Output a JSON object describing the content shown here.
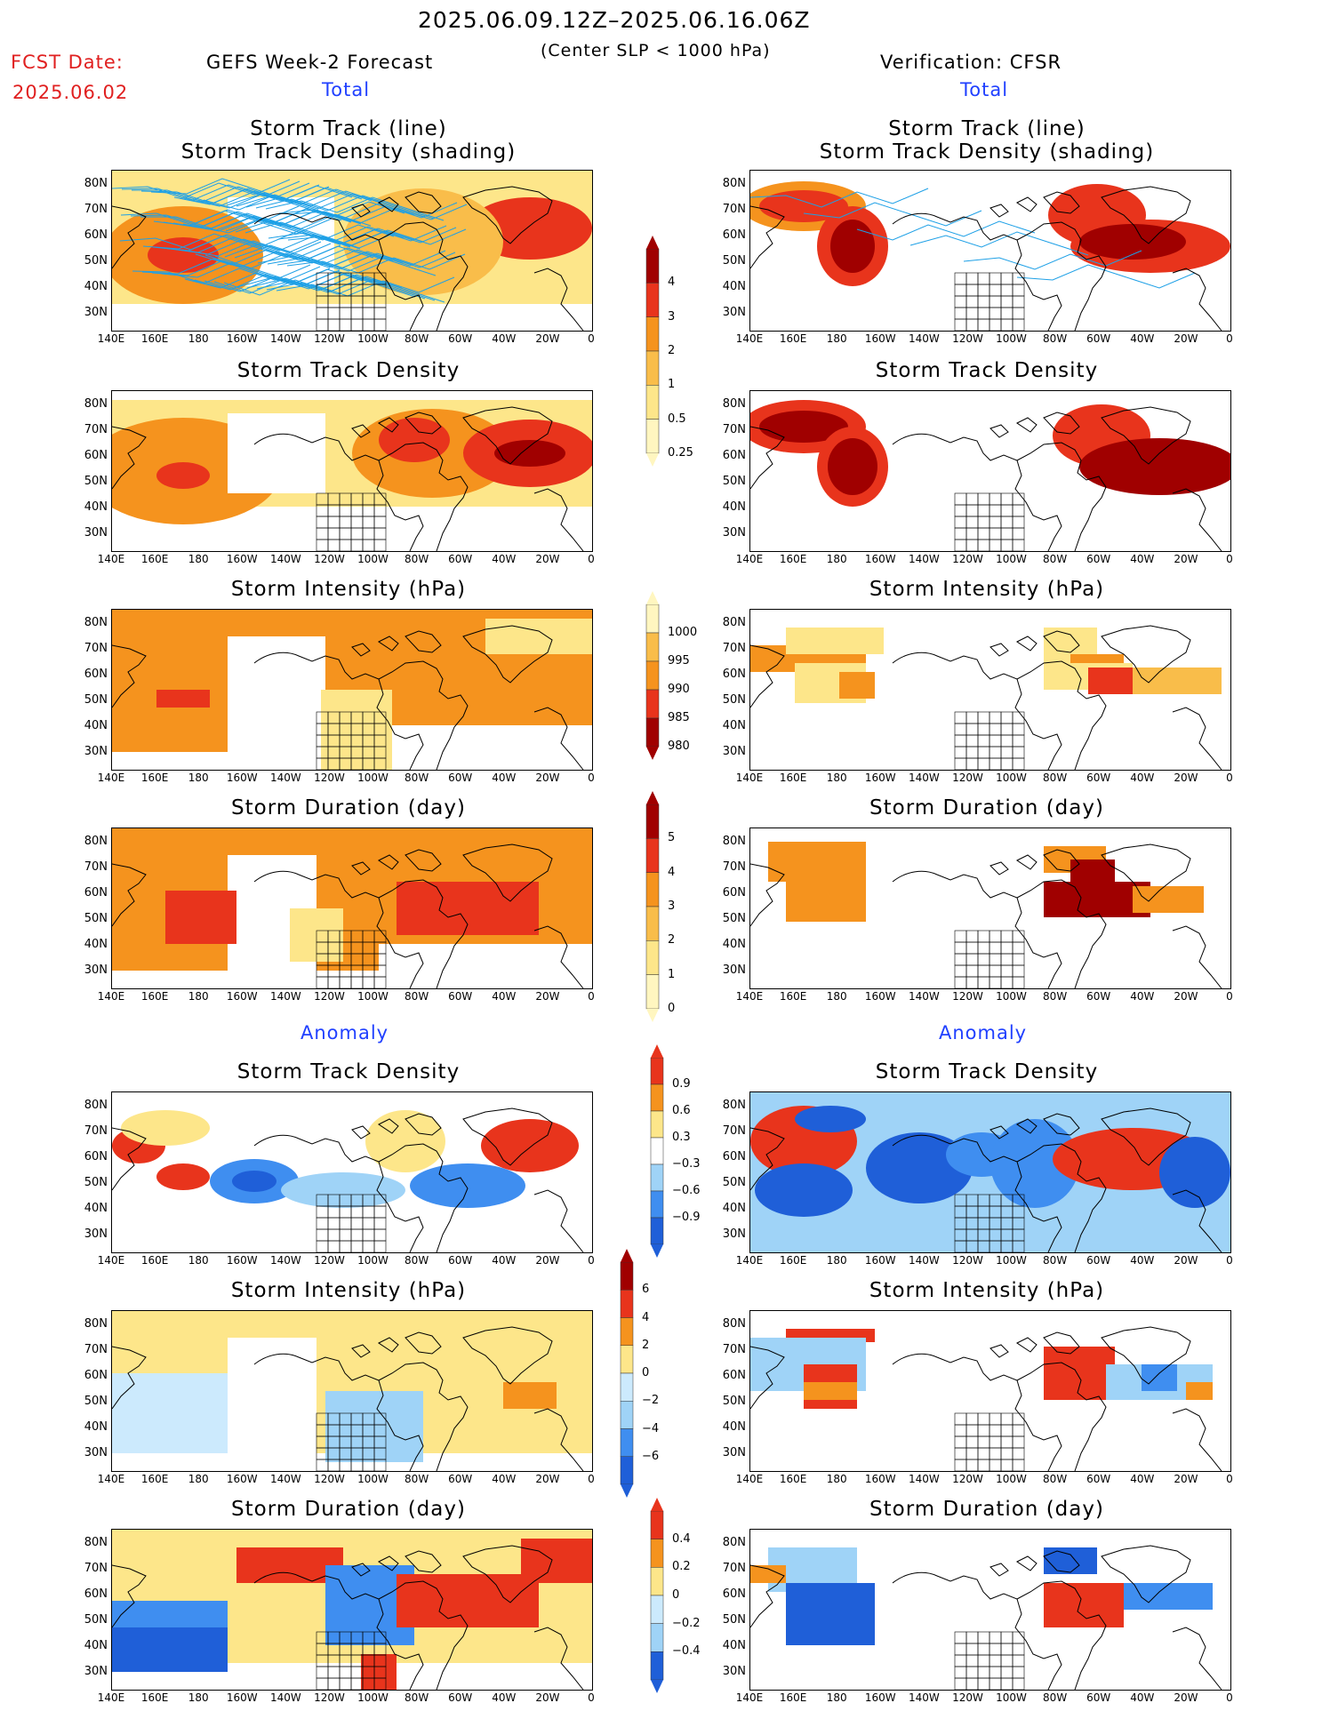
{
  "header": {
    "date_range": "2025.06.09.12Z–2025.06.16.06Z",
    "subtitle": "(Center SLP < 1000 hPa)",
    "fcst_label": "FCST Date:",
    "fcst_date": "2025.06.02",
    "left_title": "GEFS Week-2 Forecast",
    "right_title": "Verification: CFSR",
    "total_label": "Total",
    "anomaly_label": "Anomaly"
  },
  "lon_ticks": [
    "140E",
    "160E",
    "180",
    "160W",
    "140W",
    "120W",
    "100W",
    "80W",
    "60W",
    "40W",
    "20W",
    "0"
  ],
  "lat_ticks": [
    "80N",
    "70N",
    "60N",
    "50N",
    "40N",
    "30N"
  ],
  "panels": {
    "row1": {
      "title_line1": "Storm Track (line)",
      "title_line2": "Storm Track Density (shading)"
    },
    "row2": {
      "title": "Storm Track Density"
    },
    "row3": {
      "title": "Storm Intensity (hPa)"
    },
    "row4": {
      "title": "Storm Duration (day)"
    },
    "row5": {
      "title": "Storm Track Density"
    },
    "row6": {
      "title": "Storm Intensity (hPa)"
    },
    "row7": {
      "title": "Storm Duration (day)"
    }
  },
  "colorbars": {
    "density_total": {
      "labels": [
        "4",
        "3",
        "2",
        "1",
        "0.5",
        "0.25"
      ]
    },
    "intensity_total": {
      "labels": [
        "1000",
        "995",
        "990",
        "985",
        "980"
      ]
    },
    "duration_total": {
      "labels": [
        "5",
        "4",
        "3",
        "2",
        "1",
        "0"
      ]
    },
    "density_anom": {
      "labels": [
        "0.9",
        "0.6",
        "0.3",
        "−0.3",
        "−0.6",
        "−0.9"
      ]
    },
    "intensity_anom": {
      "labels": [
        "6",
        "4",
        "2",
        "0",
        "−2",
        "−4",
        "−6"
      ]
    },
    "duration_anom": {
      "labels": [
        "0.4",
        "0.2",
        "0",
        "−0.2",
        "−0.4"
      ]
    }
  },
  "colors": {
    "dark_red": "#a00000",
    "red": "#e8341c",
    "orange": "#f5931e",
    "light_orange": "#f9bd4a",
    "yellow": "#fde68a",
    "pale_yellow": "#fff6c0",
    "dark_blue": "#1f5fd8",
    "blue": "#3f8ef0",
    "light_blue": "#9fd3f7",
    "pale_blue": "#cceafd",
    "track_line": "#1ea0e6"
  }
}
